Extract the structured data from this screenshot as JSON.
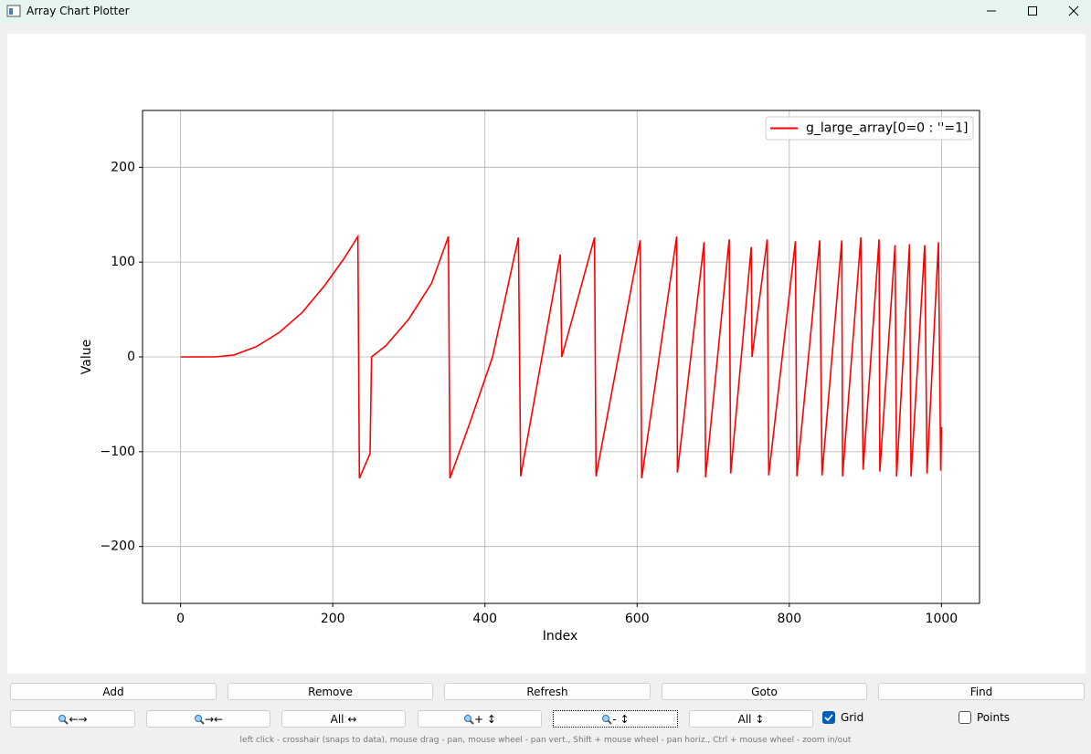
{
  "window": {
    "title": "Array Chart Plotter"
  },
  "chart_data": {
    "type": "line",
    "xlabel": "Index",
    "ylabel": "Value",
    "x": [
      0,
      45,
      70,
      100,
      130,
      160,
      190,
      215,
      233,
      235,
      249,
      251,
      270,
      300,
      330,
      352,
      354,
      380,
      410,
      444,
      447,
      499,
      501,
      544,
      546,
      604,
      606,
      652,
      653,
      688,
      690,
      721,
      723,
      750,
      751,
      771,
      773,
      808,
      810,
      840,
      843,
      869,
      870,
      894,
      897,
      918,
      919,
      939,
      941,
      958,
      960,
      978,
      981,
      996,
      999,
      1000
    ],
    "series": [
      {
        "name": "g_large_array[0=0 : ''=1]",
        "color": "#ff0000",
        "values": [
          0,
          0,
          2,
          11,
          26,
          47,
          76,
          104,
          127,
          -128,
          -102,
          0,
          12,
          40,
          78,
          127,
          -128,
          -70,
          0,
          126,
          -126,
          108,
          0,
          126,
          -126,
          123,
          -128,
          127,
          -122,
          121,
          -127,
          124,
          -123,
          116,
          0,
          124,
          -125,
          122,
          -126,
          123,
          -125,
          123,
          -126,
          126,
          -119,
          124,
          -121,
          118,
          -126,
          119,
          -126,
          118,
          -123,
          121,
          -120,
          -74
        ]
      }
    ],
    "xlim": [
      -50,
      1050
    ],
    "ylim": [
      -260,
      260
    ],
    "xticks": [
      0,
      200,
      400,
      600,
      800,
      1000
    ],
    "yticks": [
      {
        "value": -200,
        "label": "−200"
      },
      {
        "value": -100,
        "label": "−100"
      },
      0,
      100,
      200
    ],
    "grid": true,
    "legend": "upper right"
  },
  "buttons_row1": [
    "Add",
    "Remove",
    "Refresh",
    "Goto",
    "Find"
  ],
  "buttons_row2": [
    "←→",
    "→←",
    "All ↔",
    "+ ↕",
    "- ↕",
    "All ↕"
  ],
  "checkboxes": [
    {
      "label": "Grid",
      "checked": true
    },
    {
      "label": "Points",
      "checked": false
    }
  ],
  "status": "left click - crosshair (snaps to data), mouse drag - pan, mouse wheel - pan vert., Shift + mouse wheel - pan horiz., Ctrl + mouse wheel - zoom in/out"
}
